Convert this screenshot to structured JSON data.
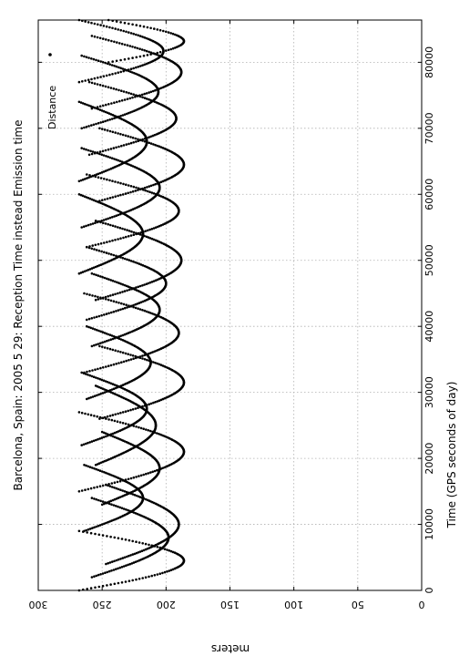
{
  "chart_data": {
    "type": "scatter",
    "title": "Barcelona, Spain: 2005 5 29: Reception Time instead Emission time",
    "xlabel": "Time (GPS seconds of day)",
    "ylabel": "meters",
    "xlim": [
      0,
      86400
    ],
    "ylim": [
      0,
      300
    ],
    "x_ticks": [
      "0",
      "10000",
      "20000",
      "30000",
      "40000",
      "50000",
      "60000",
      "70000",
      "80000"
    ],
    "y_ticks": [
      "0",
      "50",
      "100",
      "150",
      "200",
      "250",
      "300"
    ],
    "grid": true,
    "orientation": "rotated 90 degrees counter-clockwise",
    "legend": {
      "position": "top-right",
      "entries": [
        "Distance"
      ]
    },
    "series": [
      {
        "name": "Distance",
        "marker": "dot",
        "color": "#000000",
        "arcs": [
          {
            "x0": 0,
            "x1": 9000,
            "ymin": 186,
            "ymax": 268
          },
          {
            "x0": 2000,
            "x1": 14000,
            "ymin": 198,
            "ymax": 258
          },
          {
            "x0": 4000,
            "x1": 16000,
            "ymin": 190,
            "ymax": 247
          },
          {
            "x0": 9000,
            "x1": 19000,
            "ymin": 218,
            "ymax": 264
          },
          {
            "x0": 13000,
            "x1": 24000,
            "ymin": 205,
            "ymax": 250
          },
          {
            "x0": 15000,
            "x1": 27000,
            "ymin": 186,
            "ymax": 268
          },
          {
            "x0": 19000,
            "x1": 31000,
            "ymin": 208,
            "ymax": 255
          },
          {
            "x0": 22000,
            "x1": 33000,
            "ymin": 215,
            "ymax": 266
          },
          {
            "x0": 26000,
            "x1": 37000,
            "ymin": 186,
            "ymax": 252
          },
          {
            "x0": 29000,
            "x1": 40000,
            "ymin": 212,
            "ymax": 262
          },
          {
            "x0": 33000,
            "x1": 45000,
            "ymin": 190,
            "ymax": 264
          },
          {
            "x0": 37000,
            "x1": 48000,
            "ymin": 205,
            "ymax": 258
          },
          {
            "x0": 41000,
            "x1": 52000,
            "ymin": 200,
            "ymax": 262
          },
          {
            "x0": 44000,
            "x1": 56000,
            "ymin": 188,
            "ymax": 255
          },
          {
            "x0": 48000,
            "x1": 60000,
            "ymin": 218,
            "ymax": 268
          },
          {
            "x0": 52000,
            "x1": 63000,
            "ymin": 190,
            "ymax": 262
          },
          {
            "x0": 55000,
            "x1": 67000,
            "ymin": 205,
            "ymax": 266
          },
          {
            "x0": 59000,
            "x1": 70000,
            "ymin": 186,
            "ymax": 252
          },
          {
            "x0": 62000,
            "x1": 74000,
            "ymin": 215,
            "ymax": 268
          },
          {
            "x0": 66000,
            "x1": 77000,
            "ymin": 192,
            "ymax": 260
          },
          {
            "x0": 70000,
            "x1": 81000,
            "ymin": 206,
            "ymax": 266
          },
          {
            "x0": 73000,
            "x1": 84000,
            "ymin": 188,
            "ymax": 258
          },
          {
            "x0": 77000,
            "x1": 86400,
            "ymin": 202,
            "ymax": 268
          },
          {
            "x0": 80000,
            "x1": 86400,
            "ymin": 186,
            "ymax": 245
          }
        ]
      }
    ]
  }
}
